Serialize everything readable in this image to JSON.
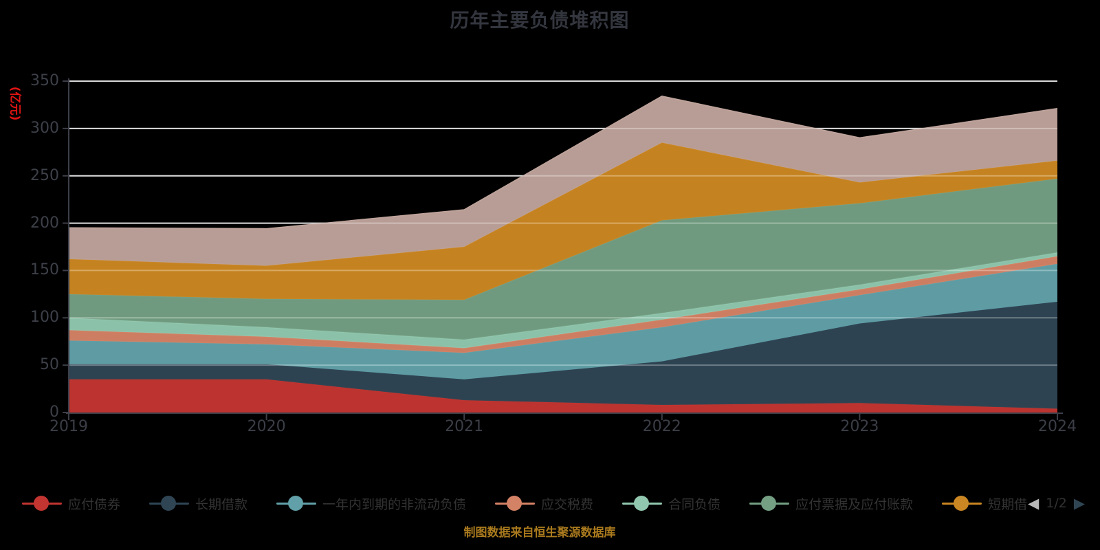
{
  "title": "历年主要负债堆积图",
  "y_axis_name": "(亿元)",
  "y_axis_name_color": "#e01414",
  "footer_note": "制图数据来自恒生聚源数据库",
  "legend": {
    "items": [
      {
        "label": "应付债券",
        "color": "#c23531"
      },
      {
        "label": "长期借款",
        "color": "#2f4554"
      },
      {
        "label": "一年内到期的非流动负债",
        "color": "#61a0a8"
      },
      {
        "label": "应交税费",
        "color": "#d48265"
      },
      {
        "label": "合同负债",
        "color": "#91c7ae"
      },
      {
        "label": "应付票据及应付账款",
        "color": "#749f83"
      },
      {
        "label": "短期借",
        "color": "#ca8622"
      }
    ],
    "pagination": {
      "prev_icon": "◀",
      "prev_color": "#b9b9b9",
      "page": "1/2",
      "next_icon": "▶",
      "next_color": "#2f4554"
    }
  },
  "chart_data": {
    "type": "area",
    "stacked": true,
    "title": "历年主要负债堆积图",
    "categories": [
      "2019",
      "2020",
      "2021",
      "2022",
      "2023",
      "2024"
    ],
    "series": [
      {
        "name": "应付债券",
        "color": "#c23531",
        "values": [
          35,
          35,
          13,
          8,
          10,
          4
        ]
      },
      {
        "name": "长期借款",
        "color": "#2f4554",
        "values": [
          16,
          16,
          22,
          46,
          84,
          113
        ]
      },
      {
        "name": "一年内到期的非流动负债",
        "color": "#61a0a8",
        "values": [
          25,
          21,
          28,
          36,
          30,
          40
        ]
      },
      {
        "name": "应交税费",
        "color": "#d48265",
        "values": [
          11,
          8,
          5,
          8,
          6,
          8
        ]
      },
      {
        "name": "合同负债",
        "color": "#91c7ae",
        "values": [
          13,
          10,
          9,
          7,
          5,
          4
        ]
      },
      {
        "name": "应付票据及应付账款",
        "color": "#749f83",
        "values": [
          25,
          30,
          42,
          98,
          86,
          78
        ]
      },
      {
        "name": "短期借",
        "color": "#ca8622",
        "values": [
          37,
          35,
          56,
          82,
          22,
          19
        ]
      },
      {
        "name": "",
        "color": "#bda29a",
        "values": [
          33,
          39,
          39,
          49,
          47,
          55
        ]
      }
    ],
    "xlabel": "",
    "ylabel": "(亿元)",
    "ylim": [
      0,
      350
    ],
    "y_ticks": [
      0,
      50,
      100,
      150,
      200,
      250,
      300,
      350
    ],
    "grid": true,
    "legend_position": "bottom",
    "background": "#000000",
    "totals": [
      195,
      194,
      214,
      334,
      290,
      321
    ]
  }
}
